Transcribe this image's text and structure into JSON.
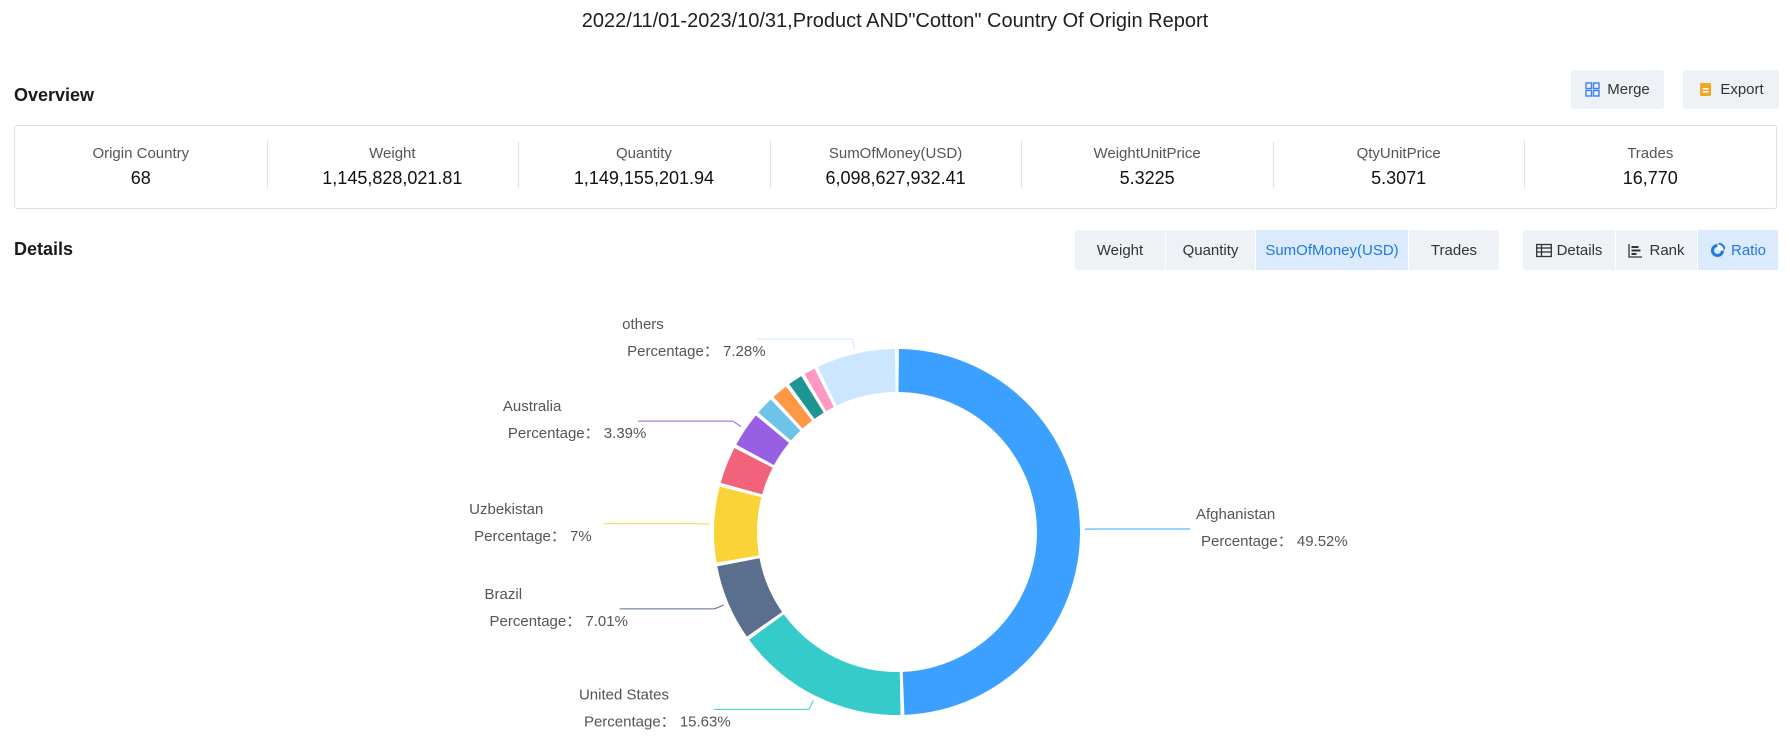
{
  "report_title": "2022/11/01-2023/10/31,Product AND\"Cotton\" Country Of Origin Report",
  "overview": {
    "title": "Overview",
    "merge_label": "Merge",
    "export_label": "Export",
    "stats": [
      {
        "label": "Origin Country",
        "value": "68"
      },
      {
        "label": "Weight",
        "value": "1,145,828,021.81"
      },
      {
        "label": "Quantity",
        "value": "1,149,155,201.94"
      },
      {
        "label": "SumOfMoney(USD)",
        "value": "6,098,627,932.41"
      },
      {
        "label": "WeightUnitPrice",
        "value": "5.3225"
      },
      {
        "label": "QtyUnitPrice",
        "value": "5.3071"
      },
      {
        "label": "Trades",
        "value": "16,770"
      }
    ]
  },
  "details": {
    "title": "Details",
    "metric_tabs": [
      {
        "label": "Weight",
        "active": false
      },
      {
        "label": "Quantity",
        "active": false
      },
      {
        "label": "SumOfMoney(USD)",
        "active": true
      },
      {
        "label": "Trades",
        "active": false
      }
    ],
    "view_tabs": [
      {
        "label": "Details",
        "icon": "table-icon",
        "active": false
      },
      {
        "label": "Rank",
        "icon": "bar-chart-icon",
        "active": false
      },
      {
        "label": "Ratio",
        "icon": "donut-icon",
        "active": true
      }
    ]
  },
  "colors": {
    "accent": "#1f7ae0",
    "merge_icon": "#3b82f6",
    "export_icon": "#f5a623"
  },
  "chart_data": {
    "type": "pie",
    "style": "donut",
    "metric": "SumOfMoney(USD)",
    "value_prefix": "Percentage：",
    "slices": [
      {
        "name": "Afghanistan",
        "value": 49.52,
        "color": "#3ba0ff",
        "label": "Afghanistan",
        "value_text": "49.52%"
      },
      {
        "name": "United States",
        "value": 15.63,
        "color": "#36cbcb",
        "label": "United States",
        "value_text": "15.63%"
      },
      {
        "name": "Brazil",
        "value": 7.01,
        "color": "#5a6e8e",
        "label": "Brazil",
        "value_text": "7.01%"
      },
      {
        "name": "Uzbekistan",
        "value": 7.0,
        "color": "#fad337",
        "label": "Uzbekistan",
        "value_text": "7%"
      },
      {
        "name": "",
        "value": 3.6,
        "color": "#f2637b",
        "label": "",
        "value_text": ""
      },
      {
        "name": "Australia",
        "value": 3.39,
        "color": "#975fe4",
        "label": "Australia",
        "value_text": "3.39%"
      },
      {
        "name": "",
        "value": 1.9,
        "color": "#6ec3e9",
        "label": "",
        "value_text": ""
      },
      {
        "name": "",
        "value": 1.75,
        "color": "#ff9845",
        "label": "",
        "value_text": ""
      },
      {
        "name": "",
        "value": 1.6,
        "color": "#1e9493",
        "label": "",
        "value_text": ""
      },
      {
        "name": "",
        "value": 1.32,
        "color": "#ff99c3",
        "label": "",
        "value_text": ""
      },
      {
        "name": "others",
        "value": 7.28,
        "color": "#cde6ff",
        "label": "others",
        "value_text": "7.28%"
      }
    ]
  }
}
